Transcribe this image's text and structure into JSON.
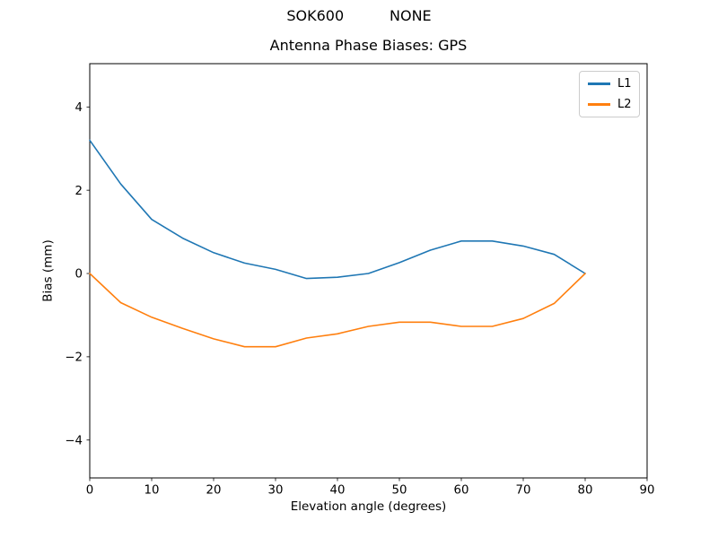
{
  "figure": {
    "suptitle": "SOK600          NONE",
    "background_color": "#ffffff"
  },
  "chart_data": {
    "type": "line",
    "title": "Antenna Phase Biases: GPS",
    "xlabel": "Elevation angle (degrees)",
    "ylabel": "Bias (mm)",
    "xlim": [
      0,
      90
    ],
    "ylim": [
      -4.91,
      5.04
    ],
    "grid": false,
    "xticks": {
      "values": [
        0,
        10,
        20,
        30,
        40,
        50,
        60,
        70,
        80,
        90
      ],
      "labels": [
        "0",
        "10",
        "20",
        "30",
        "40",
        "50",
        "60",
        "70",
        "80",
        "90"
      ]
    },
    "yticks": {
      "values": [
        -4,
        -2,
        0,
        2,
        4
      ],
      "labels": [
        "−4",
        "−2",
        "0",
        "2",
        "4"
      ]
    },
    "x": [
      0,
      5,
      10,
      15,
      20,
      25,
      30,
      35,
      40,
      45,
      50,
      55,
      60,
      65,
      70,
      75,
      80
    ],
    "series": [
      {
        "name": "L1",
        "color": "#1f77b4",
        "values": [
          3.2,
          2.15,
          1.3,
          0.85,
          0.5,
          0.25,
          0.1,
          -0.12,
          -0.09,
          0.0,
          0.26,
          0.56,
          0.78,
          0.78,
          0.66,
          0.46,
          0.0
        ]
      },
      {
        "name": "L2",
        "color": "#ff7f0e",
        "values": [
          0.0,
          -0.7,
          -1.05,
          -1.32,
          -1.57,
          -1.76,
          -1.76,
          -1.55,
          -1.45,
          -1.27,
          -1.17,
          -1.17,
          -1.27,
          -1.27,
          -1.08,
          -0.72,
          0.0
        ]
      }
    ],
    "legend": {
      "position": "upper right",
      "entries": [
        "L1",
        "L2"
      ]
    }
  }
}
